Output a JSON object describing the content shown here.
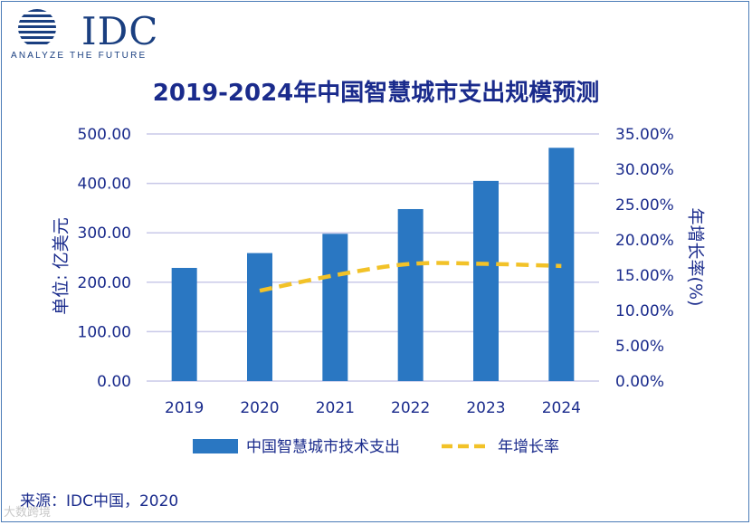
{
  "logo": {
    "brand": "IDC",
    "tagline": "ANALYZE THE FUTURE"
  },
  "colors": {
    "bar": "#2a77c2",
    "line": "#f2c228",
    "grid": "#c9c9e8",
    "text": "#1a2b8c"
  },
  "chart_data": {
    "type": "bar",
    "title": "2019-2024年中国智慧城市支出规模预测",
    "categories": [
      "2019",
      "2020",
      "2021",
      "2022",
      "2023",
      "2024"
    ],
    "series": [
      {
        "name": "中国智慧城市技术支出",
        "type": "bar",
        "axis": "left",
        "values": [
          229,
          259,
          298,
          348,
          405,
          472
        ]
      },
      {
        "name": "年增长率",
        "type": "line",
        "style": "dashed",
        "axis": "right",
        "values": [
          null,
          0.128,
          0.15,
          0.166,
          0.166,
          0.163
        ]
      }
    ],
    "ylabel": "单位: 亿美元",
    "ylabel_right": "年增长率(%)",
    "ylim": [
      0,
      500
    ],
    "ylim_right": [
      0,
      0.35
    ],
    "yticks": [
      "0.00",
      "100.00",
      "200.00",
      "300.00",
      "400.00",
      "500.00"
    ],
    "yticks_right": [
      "0.00%",
      "5.00%",
      "10.00%",
      "15.00%",
      "20.00%",
      "25.00%",
      "30.00%",
      "35.00%"
    ],
    "legend": [
      "中国智慧城市技术支出",
      "年增长率"
    ],
    "legend_position": "bottom"
  },
  "source": "来源：IDC中国，2020",
  "watermark": "大数跨境"
}
